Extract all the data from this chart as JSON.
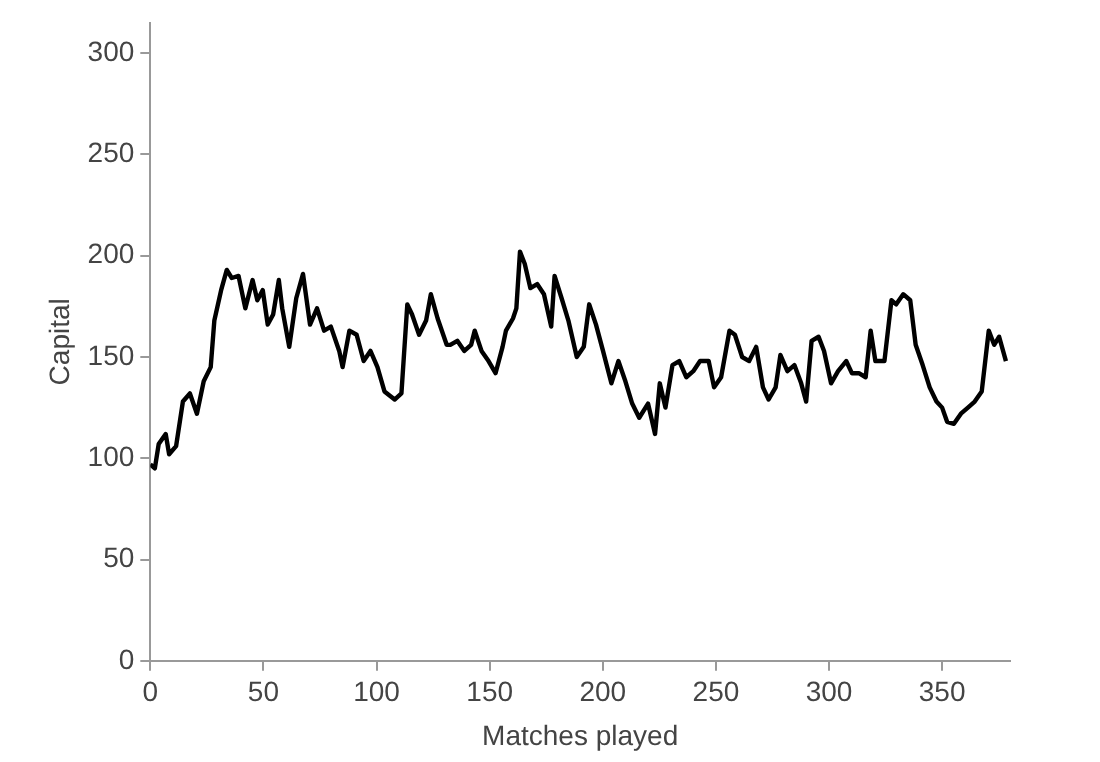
{
  "chart_data": {
    "type": "line",
    "xlabel": "Matches played",
    "ylabel": "Capital",
    "xlim": [
      0,
      380
    ],
    "ylim": [
      0,
      315
    ],
    "xticks": [
      0,
      50,
      100,
      150,
      200,
      250,
      300,
      350
    ],
    "yticks": [
      0,
      50,
      100,
      150,
      200,
      250,
      300
    ],
    "grid": false,
    "legend": false,
    "marker": "none",
    "line_style": "solid",
    "x": [
      0,
      2,
      3.7,
      6.8,
      8.3,
      11.4,
      14.4,
      17.5,
      20.6,
      23.6,
      26.7,
      28.3,
      31.3,
      33.8,
      36,
      39,
      42,
      45.2,
      47.3,
      49.7,
      51.9,
      54.3,
      56.8,
      58.3,
      61.4,
      64.5,
      67.5,
      70.6,
      73.7,
      76.8,
      79.8,
      83.5,
      85,
      88,
      91.2,
      94.3,
      97.3,
      100.4,
      103.5,
      108,
      111,
      113.6,
      115.7,
      118.8,
      121.9,
      124,
      127,
      131,
      132.6,
      135.7,
      138.8,
      141.8,
      143.4,
      146.4,
      149.5,
      152.6,
      155.7,
      157.2,
      160.3,
      161.8,
      163.4,
      165.5,
      168,
      171,
      174,
      177.2,
      178.7,
      181.8,
      184.8,
      188.5,
      191.6,
      194,
      197,
      200.1,
      203.8,
      206.9,
      210,
      213,
      216.1,
      220,
      223.1,
      225.2,
      227.7,
      230.8,
      233.8,
      236.9,
      240,
      243,
      246.8,
      249.2,
      252.3,
      256,
      258.4,
      261.6,
      264.7,
      267.8,
      270.8,
      273.3,
      276.4,
      278.5,
      281.6,
      284.7,
      287.7,
      289.9,
      292.3,
      295.4,
      297.8,
      300.9,
      304,
      307.6,
      310.1,
      313.2,
      316.2,
      318.4,
      320.5,
      324.5,
      327.6,
      329.7,
      332.8,
      335.9,
      338.3,
      341.4,
      344.5,
      347.5,
      350,
      352.2,
      355.2,
      358.3,
      361.4,
      364.4,
      367.5,
      370.6,
      373,
      375.2,
      378.2
    ],
    "series": [
      {
        "color": "#000000",
        "values": [
          97,
          95,
          107,
          112,
          102,
          106,
          128,
          132,
          122,
          138,
          145,
          168,
          183,
          193,
          189,
          190,
          174,
          188,
          178,
          183,
          166,
          171,
          188,
          174,
          155,
          179,
          191,
          166,
          174,
          163,
          165,
          153,
          145,
          163,
          161,
          148,
          153,
          145,
          133,
          129,
          132,
          176,
          171,
          161,
          168,
          181,
          169,
          156,
          156,
          158,
          153,
          156,
          163,
          153,
          148,
          142,
          155,
          163,
          169,
          174,
          202,
          196,
          184,
          186,
          181,
          165,
          190,
          179,
          168,
          150,
          155,
          176,
          166,
          153,
          137,
          148,
          138,
          127,
          120,
          127,
          112,
          137,
          125,
          146,
          148,
          140,
          143,
          148,
          148,
          135,
          140,
          163,
          161,
          150,
          148,
          155,
          135,
          129,
          135,
          151,
          143,
          146,
          137,
          128,
          158,
          160,
          153,
          137,
          143,
          148,
          142,
          142,
          140,
          163,
          148,
          148,
          178,
          176,
          181,
          178,
          156,
          146,
          135,
          128,
          125,
          118,
          117,
          122,
          125,
          128,
          133,
          163,
          156,
          160,
          148
        ]
      }
    ]
  }
}
